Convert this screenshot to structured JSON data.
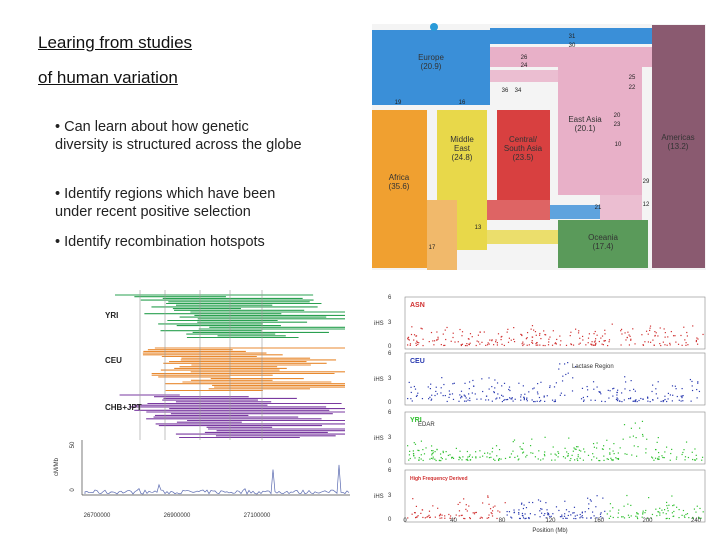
{
  "title_lines": [
    "Learing from studies",
    "of human variation"
  ],
  "bullets": [
    "• Can learn about how genetic diversity is structured across the globe",
    "• Identify regions which have been under recent positive selection",
    "• Identify recombination hotspots"
  ],
  "migration": {
    "regions": [
      {
        "lines": [
          "Europe"
        ],
        "value": "(20.9)"
      },
      {
        "lines": [
          "Africa"
        ],
        "value": "(35.6)"
      },
      {
        "lines": [
          "Middle",
          "East"
        ],
        "value": "(24.8)"
      },
      {
        "lines": [
          "Central/",
          "South Asia"
        ],
        "value": "(23.5)"
      },
      {
        "lines": [
          "East Asia"
        ],
        "value": "(20.1)"
      },
      {
        "lines": [
          "Americas"
        ],
        "value": "(13.2)"
      },
      {
        "lines": [
          "Oceania"
        ],
        "value": "(17.4)"
      }
    ],
    "flows": [
      "31",
      "30",
      "26",
      "24",
      "25",
      "22",
      "20",
      "23",
      "36",
      "34",
      "19",
      "16",
      "10",
      "29",
      "12",
      "21",
      "17",
      "13"
    ]
  },
  "haplotypes": {
    "populations": [
      "YRI",
      "CEU",
      "CHB+JPT"
    ],
    "y_label": "cM/Mb",
    "y_ticks": [
      "50",
      "0"
    ],
    "x_ticks": [
      "26700000",
      "26900000",
      "27100000"
    ]
  },
  "selection_scan": {
    "panels": [
      "ASN",
      "CEU",
      "YRI",
      "High Frequency Derived"
    ],
    "y_label": "iHS",
    "annotations": [
      "Lactase Region",
      "EDAR"
    ],
    "y_ticks": [
      "6",
      "3",
      "0"
    ],
    "x_ticks": [
      "0",
      "40",
      "80",
      "120",
      "160",
      "200",
      "240"
    ],
    "x_label": "Position (Mb)"
  }
}
